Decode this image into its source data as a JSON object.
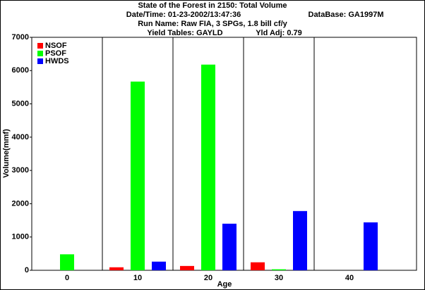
{
  "chart_data": {
    "type": "bar",
    "title": "State of the Forest in 2150: Total Volume",
    "info_lines": [
      [
        "Date/Time: 01-23-2002/13:47:36",
        "DataBase: GA1997M"
      ],
      [
        "Run Name: Raw FIA, 3 SPGs, 1.8 bill cf/y"
      ],
      [
        "Yield Tables: GAYLD",
        "Yld Adj: 0.79"
      ]
    ],
    "x_label": "Age",
    "y_label": "Volume(mmf)",
    "categories": [
      "0",
      "10",
      "20",
      "30",
      "40"
    ],
    "series": [
      {
        "name": "NSOF",
        "color": "#ff0000",
        "values": [
          0,
          90,
          130,
          240,
          0
        ]
      },
      {
        "name": "PSOF",
        "color": "#00ff00",
        "values": [
          480,
          5670,
          6180,
          30,
          0
        ]
      },
      {
        "name": "HWDS",
        "color": "#0000ff",
        "values": [
          0,
          260,
          1400,
          1780,
          1440
        ]
      }
    ],
    "ylim": [
      0,
      7000
    ],
    "yticks": [
      0,
      1000,
      2000,
      3000,
      4000,
      5000,
      6000,
      7000
    ],
    "legend": "top-left"
  }
}
